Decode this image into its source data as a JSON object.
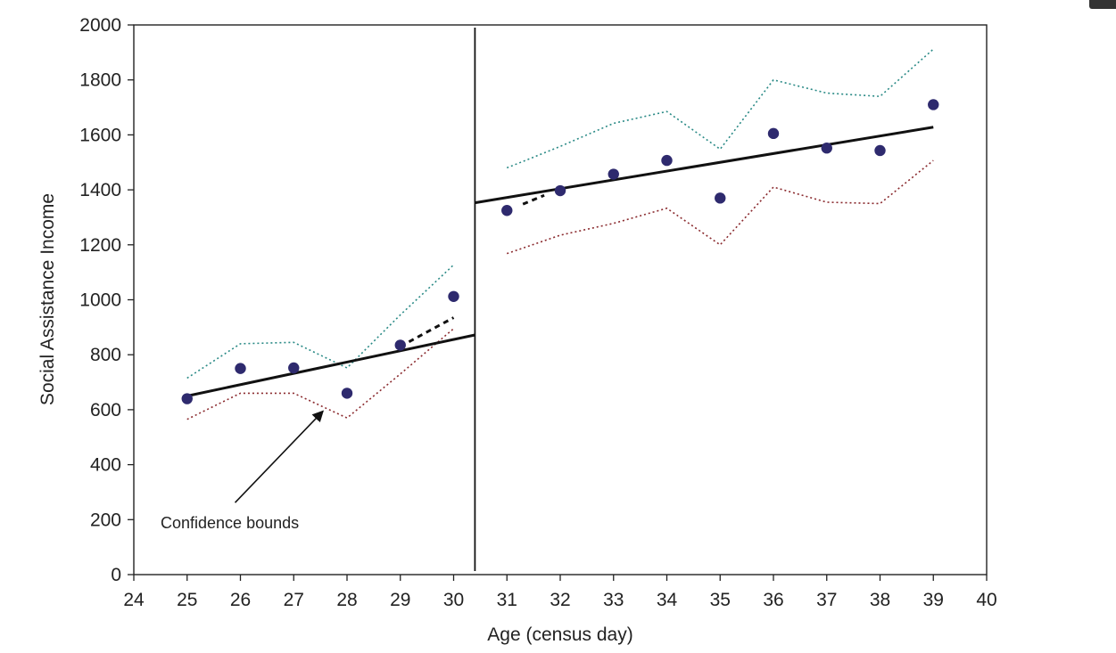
{
  "chart_data": {
    "type": "scatter",
    "title": "",
    "xlabel": "Age (census day)",
    "ylabel": "Social Assistance Income",
    "xlim": [
      24,
      40
    ],
    "ylim": [
      0,
      2000
    ],
    "xticks": [
      24,
      25,
      26,
      27,
      28,
      29,
      30,
      31,
      32,
      33,
      34,
      35,
      36,
      37,
      38,
      39,
      40
    ],
    "yticks": [
      0,
      200,
      400,
      600,
      800,
      1000,
      1200,
      1400,
      1600,
      1800,
      2000
    ],
    "grid": false,
    "cutoff_x": 30.4,
    "points": {
      "x": [
        25,
        26,
        27,
        28,
        29,
        30,
        31,
        32,
        33,
        34,
        35,
        36,
        37,
        38,
        39
      ],
      "y": [
        640,
        750,
        752,
        660,
        835,
        1012,
        1325,
        1397,
        1457,
        1507,
        1370,
        1605,
        1552,
        1543,
        1710
      ],
      "color": "#2e2a6e"
    },
    "fit_left": {
      "x": [
        25,
        30.4
      ],
      "y": [
        650,
        872
      ]
    },
    "fit_right": {
      "x": [
        30.4,
        39
      ],
      "y": [
        1353,
        1628
      ]
    },
    "fit_left_extension": {
      "x": [
        29,
        30
      ],
      "y": [
        830,
        935
      ]
    },
    "fit_right_extension": {
      "x": [
        31.3,
        31.7
      ],
      "y": [
        1348,
        1380
      ]
    },
    "upper_bound_left": {
      "x": [
        25,
        26,
        27,
        28,
        29,
        30
      ],
      "y": [
        715,
        840,
        845,
        752,
        945,
        1127
      ],
      "color": "#2a8a86"
    },
    "lower_bound_left": {
      "x": [
        25,
        26,
        27,
        28,
        29,
        30
      ],
      "y": [
        565,
        660,
        660,
        570,
        730,
        895
      ],
      "color": "#8a2a2e"
    },
    "upper_bound_right": {
      "x": [
        31,
        32,
        33,
        34,
        35,
        36,
        37,
        38,
        39
      ],
      "y": [
        1480,
        1558,
        1642,
        1685,
        1548,
        1800,
        1752,
        1740,
        1912
      ],
      "color": "#2a8a86"
    },
    "lower_bound_right": {
      "x": [
        31,
        32,
        33,
        34,
        35,
        36,
        37,
        38,
        39
      ],
      "y": [
        1168,
        1235,
        1278,
        1333,
        1200,
        1410,
        1355,
        1350,
        1507
      ],
      "color": "#8a2a2e"
    },
    "annotation": {
      "text": "Confidence bounds",
      "arrow_from": [
        25.9,
        262
      ],
      "arrow_to": [
        27.55,
        595
      ]
    }
  }
}
